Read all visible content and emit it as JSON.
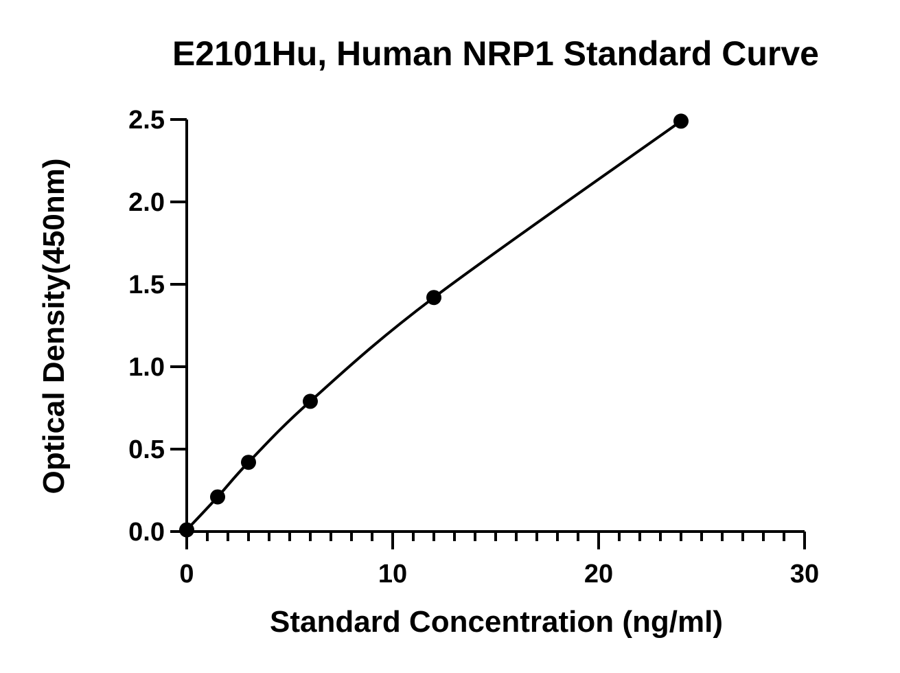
{
  "chart_data": {
    "type": "scatter",
    "title": "E2101Hu, Human NRP1 Standard Curve",
    "xlabel": "Standard Concentration (ng/ml)",
    "ylabel": "Optical Density(450nm)",
    "xlim": [
      0,
      30
    ],
    "ylim": [
      0,
      2.5
    ],
    "x_ticks": [
      "0",
      "10",
      "20",
      "30"
    ],
    "y_ticks": [
      "0.0",
      "0.5",
      "1.0",
      "1.5",
      "2.0",
      "2.5"
    ],
    "x_minor_step": 1,
    "grid": false,
    "legend": "none",
    "fit_line": true,
    "series": [
      {
        "x": [
          0,
          1.5,
          3,
          6,
          12,
          24
        ],
        "y": [
          0.01,
          0.21,
          0.42,
          0.79,
          1.42,
          2.49
        ]
      }
    ],
    "colors": {
      "points": "#000000",
      "curve": "#000000",
      "axes": "#000000"
    }
  }
}
